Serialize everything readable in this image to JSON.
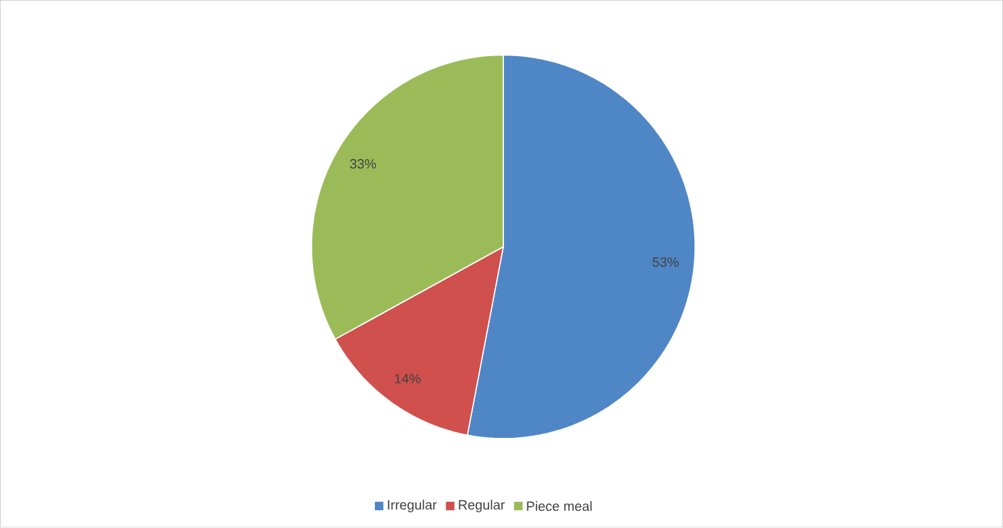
{
  "chart_data": {
    "type": "pie",
    "categories": [
      "Irregular",
      "Regular",
      "Piece meal"
    ],
    "values": [
      53,
      14,
      33
    ],
    "value_labels": [
      "53%",
      "14%",
      "33%"
    ],
    "colors": [
      "#4f86c6",
      "#d0504d",
      "#9bbb59"
    ],
    "legend": "bottom"
  }
}
